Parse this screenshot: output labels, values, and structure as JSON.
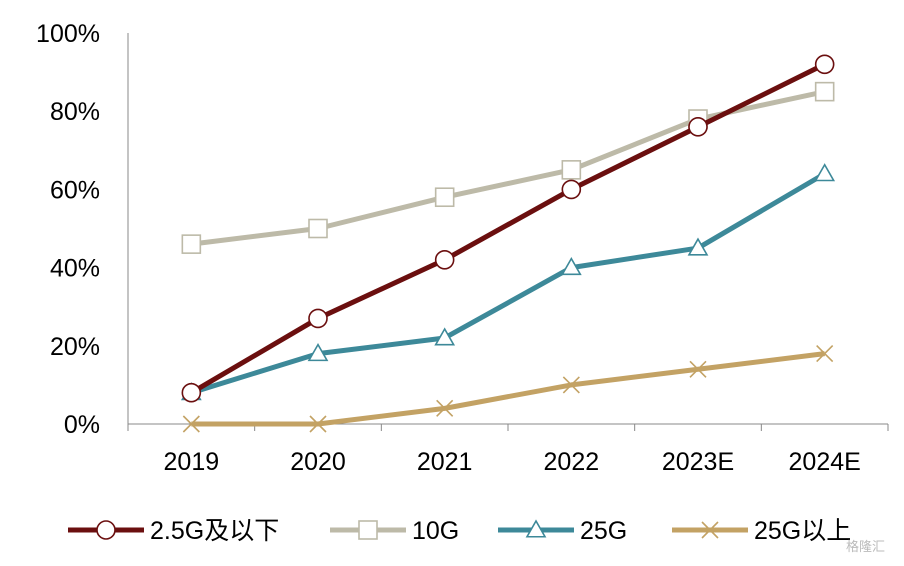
{
  "chart_data": {
    "type": "line",
    "title": "",
    "xlabel": "",
    "ylabel": "",
    "categories": [
      "2019",
      "2020",
      "2021",
      "2022",
      "2023E",
      "2024E"
    ],
    "ylim": [
      0,
      100
    ],
    "yticks": [
      "0%",
      "20%",
      "40%",
      "60%",
      "80%",
      "100%"
    ],
    "ytick_values": [
      0,
      20,
      40,
      60,
      80,
      100
    ],
    "grid": false,
    "legend_position": "bottom",
    "series": [
      {
        "name": "2.5G及以下",
        "color": "#6b0f0f",
        "marker": "circle",
        "values": [
          8,
          27,
          42,
          60,
          76,
          92
        ]
      },
      {
        "name": "10G",
        "color": "#bdbaa8",
        "marker": "square",
        "values": [
          46,
          50,
          58,
          65,
          78,
          85
        ]
      },
      {
        "name": "25G",
        "color": "#3d8999",
        "marker": "triangle",
        "values": [
          8,
          18,
          22,
          40,
          45,
          64
        ]
      },
      {
        "name": "25G以上",
        "color": "#c3a264",
        "marker": "x",
        "values": [
          0,
          0,
          4,
          10,
          14,
          18
        ]
      }
    ]
  },
  "watermark": "格隆汇"
}
